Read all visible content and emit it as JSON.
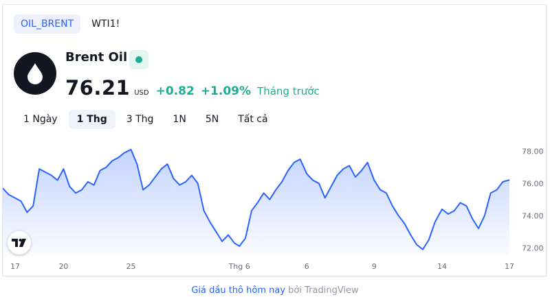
{
  "symbol_tabs": [
    {
      "label": "OIL_BRENT",
      "active": true
    },
    {
      "label": "WTI1!",
      "active": false
    }
  ],
  "instrument": {
    "name": "Brent Oil",
    "logo_icon": "oil-drop-icon",
    "status_icon": "market-status-dot-icon",
    "price": "76.21",
    "currency": "USD",
    "change": "+0.82",
    "change_percent": "+1.09%",
    "period": "Tháng trước"
  },
  "range_tabs": [
    {
      "label": "1 Ngày",
      "active": false
    },
    {
      "label": "1 Thg",
      "active": true
    },
    {
      "label": "3 Thg",
      "active": false
    },
    {
      "label": "1N",
      "active": false
    },
    {
      "label": "5N",
      "active": false
    },
    {
      "label": "Tất cả",
      "active": false
    }
  ],
  "colors": {
    "line": "#2962ff",
    "positive": "#22ab94",
    "link": "#2962ff"
  },
  "chart_data": {
    "type": "area",
    "ylim": [
      71.5,
      78.4
    ],
    "y_ticks": [
      "72.00",
      "74.00",
      "76.00",
      "78.00"
    ],
    "x_tick_labels": [
      "17",
      "20",
      "25",
      "Thg 6",
      "6",
      "9",
      "14",
      "17"
    ],
    "x_tick_positions": [
      0.0,
      0.12,
      0.253,
      0.467,
      0.6,
      0.733,
      0.867,
      1.0
    ],
    "x": [
      0.0,
      0.012,
      0.024,
      0.036,
      0.048,
      0.06,
      0.072,
      0.084,
      0.096,
      0.108,
      0.12,
      0.132,
      0.144,
      0.156,
      0.168,
      0.18,
      0.192,
      0.204,
      0.216,
      0.228,
      0.24,
      0.253,
      0.265,
      0.277,
      0.289,
      0.301,
      0.313,
      0.325,
      0.337,
      0.349,
      0.361,
      0.373,
      0.385,
      0.397,
      0.409,
      0.421,
      0.433,
      0.445,
      0.457,
      0.467,
      0.479,
      0.491,
      0.503,
      0.515,
      0.527,
      0.539,
      0.551,
      0.563,
      0.575,
      0.587,
      0.6,
      0.612,
      0.624,
      0.636,
      0.648,
      0.66,
      0.672,
      0.684,
      0.696,
      0.708,
      0.72,
      0.733,
      0.745,
      0.757,
      0.769,
      0.781,
      0.793,
      0.805,
      0.817,
      0.829,
      0.841,
      0.853,
      0.867,
      0.879,
      0.891,
      0.903,
      0.915,
      0.927,
      0.939,
      0.951,
      0.963,
      0.975,
      0.987,
      1.0
    ],
    "y": [
      75.7,
      75.3,
      75.1,
      74.9,
      74.2,
      74.6,
      76.9,
      76.7,
      76.5,
      76.2,
      76.9,
      75.8,
      75.4,
      75.6,
      76.1,
      75.9,
      76.8,
      77.0,
      77.4,
      77.6,
      77.9,
      78.1,
      77.2,
      75.6,
      75.9,
      76.4,
      76.9,
      77.2,
      76.3,
      75.9,
      76.1,
      76.5,
      76.0,
      74.3,
      73.6,
      73.0,
      72.4,
      72.8,
      72.3,
      72.1,
      72.6,
      74.3,
      74.8,
      75.4,
      75.0,
      75.6,
      76.1,
      76.8,
      77.3,
      77.5,
      76.6,
      76.2,
      76.0,
      75.1,
      75.8,
      76.5,
      76.9,
      77.1,
      76.4,
      76.8,
      77.3,
      76.2,
      75.6,
      75.4,
      74.6,
      74.0,
      73.5,
      72.8,
      72.2,
      71.9,
      72.5,
      73.6,
      74.4,
      74.1,
      74.3,
      74.8,
      74.6,
      73.8,
      73.2,
      74.0,
      75.4,
      75.6,
      76.1,
      76.21
    ]
  },
  "tv_logo_icon": "tradingview-logo-icon",
  "footer": {
    "link_text": "Giá dầu thô hôm nay",
    "by_text": "bởi",
    "brand_text": "TradingView"
  }
}
